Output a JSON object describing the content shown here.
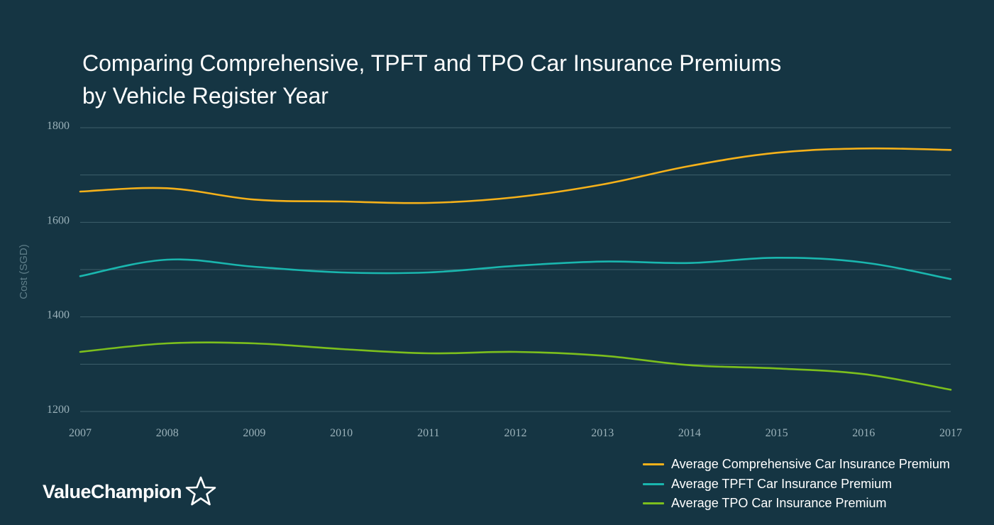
{
  "chart_data": {
    "type": "line",
    "title": [
      "Comparing Comprehensive, TPFT and TPO Car Insurance Premiums",
      "by Vehicle Register Year"
    ],
    "ylabel": "Cost (SGD)",
    "xlabel": "",
    "x": [
      "2007",
      "2008",
      "2009",
      "2010",
      "2011",
      "2012",
      "2013",
      "2014",
      "2015",
      "2016",
      "2017"
    ],
    "ylim": [
      1200,
      1800
    ],
    "yticks": [
      "1800",
      "1600",
      "1400",
      "1200"
    ],
    "grid": true,
    "legend_position": "bottom-right",
    "series": [
      {
        "name": "Average Comprehensive Car Insurance Premium",
        "color": "#f5b11a",
        "values": [
          1665,
          1672,
          1648,
          1644,
          1641,
          1653,
          1680,
          1719,
          1747,
          1756,
          1753
        ]
      },
      {
        "name": "Average TPFT Car Insurance Premium",
        "color": "#1ab6ae",
        "values": [
          1486,
          1521,
          1506,
          1494,
          1494,
          1508,
          1517,
          1514,
          1525,
          1515,
          1480
        ]
      },
      {
        "name": "Average TPO Car Insurance Premium",
        "color": "#7cbf1d",
        "values": [
          1326,
          1344,
          1344,
          1332,
          1323,
          1326,
          1318,
          1298,
          1291,
          1279,
          1246
        ]
      }
    ]
  },
  "brand": {
    "name": "ValueChampion",
    "icon": "star-outline-icon"
  },
  "colors": {
    "background": "#153543",
    "grid": "#3e5f6b",
    "axis_text": "#9ab1b9"
  }
}
